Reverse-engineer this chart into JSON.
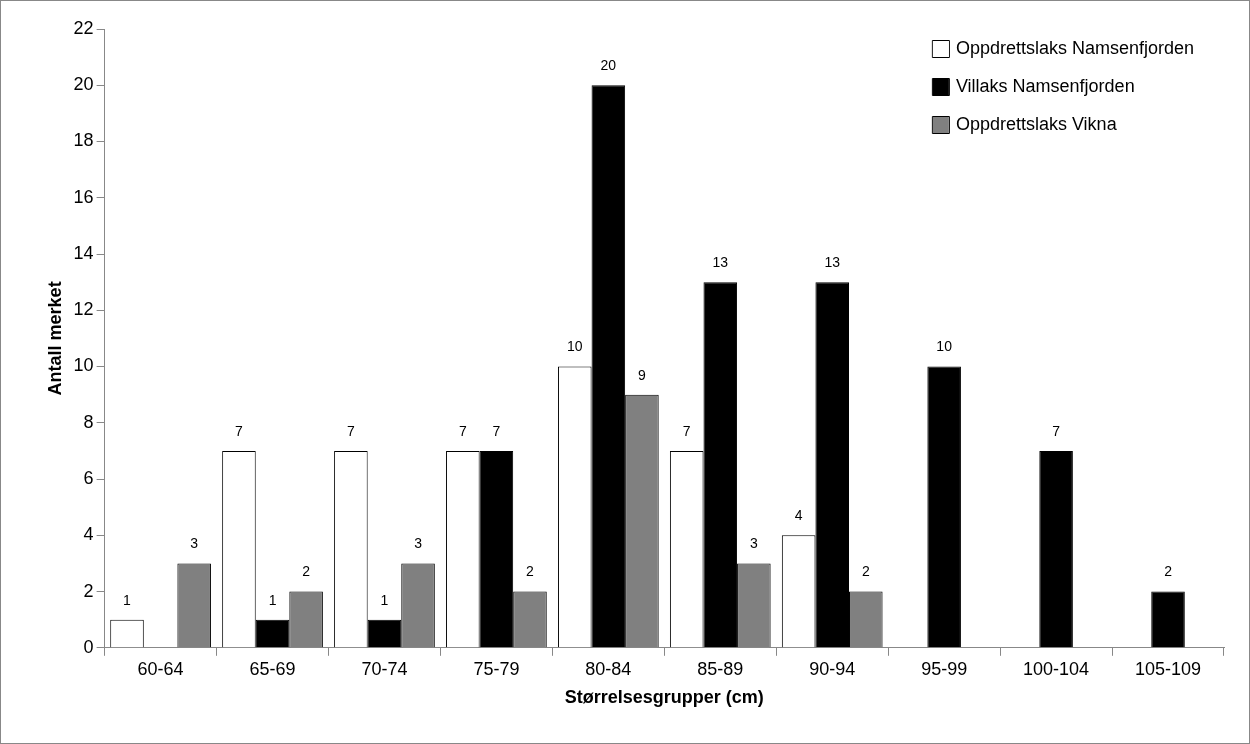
{
  "chart_data": {
    "type": "bar",
    "xlabel": "Størrelsesgrupper (cm)",
    "ylabel": "Antall merket",
    "categories": [
      "60-64",
      "65-69",
      "70-74",
      "75-79",
      "80-84",
      "85-89",
      "90-94",
      "95-99",
      "100-104",
      "105-109"
    ],
    "series": [
      {
        "name": "Oppdrettslaks Namsenfjorden",
        "color": "#ffffff",
        "values": [
          1,
          7,
          7,
          7,
          10,
          7,
          4,
          null,
          null,
          null
        ]
      },
      {
        "name": "Villaks Namsenfjorden",
        "color": "#000000",
        "values": [
          null,
          1,
          1,
          7,
          20,
          13,
          13,
          10,
          7,
          2
        ]
      },
      {
        "name": "Oppdrettslaks Vikna",
        "color": "#808080",
        "values": [
          3,
          2,
          3,
          2,
          9,
          3,
          2,
          null,
          null,
          null
        ]
      }
    ],
    "ylim": [
      0,
      22
    ],
    "yticks": [
      0,
      2,
      4,
      6,
      8,
      10,
      12,
      14,
      16,
      18,
      20,
      22
    ],
    "grid": false,
    "legend": "top right",
    "data_labels": true
  }
}
